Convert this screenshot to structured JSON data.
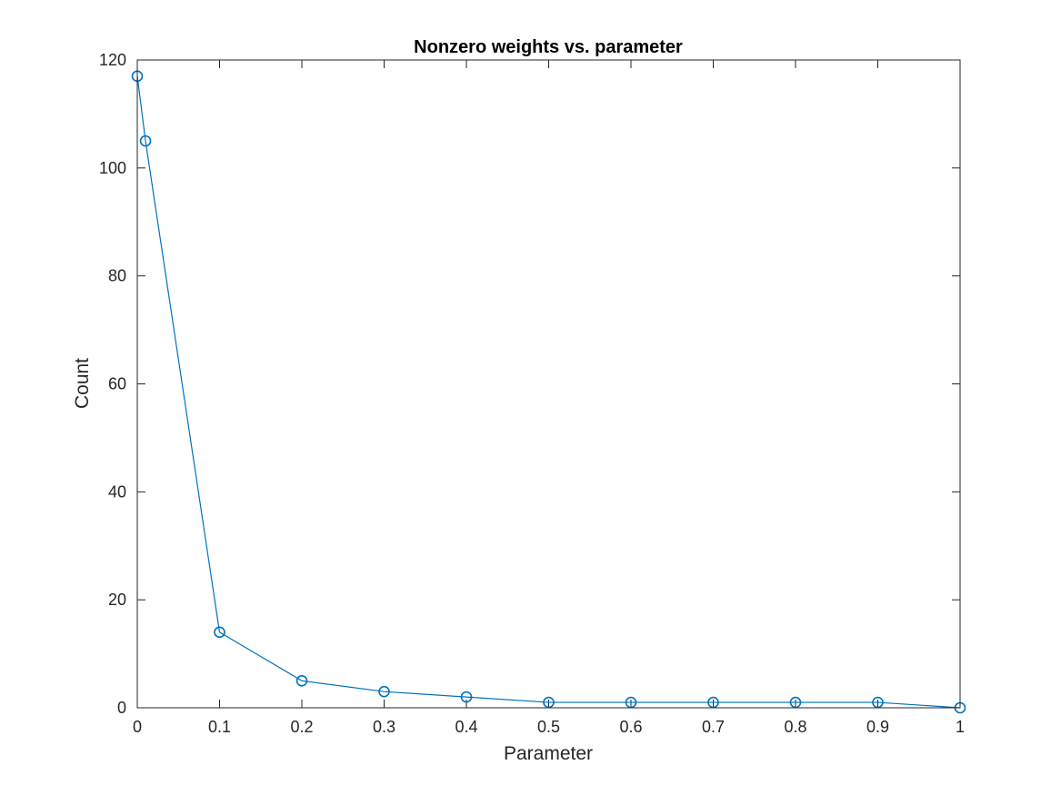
{
  "chart_data": {
    "type": "line",
    "title": "Nonzero weights vs. parameter",
    "xlabel": "Parameter",
    "ylabel": "Count",
    "xlim": [
      0,
      1
    ],
    "ylim": [
      0,
      120
    ],
    "xticks": [
      "0",
      "0.1",
      "0.2",
      "0.3",
      "0.4",
      "0.5",
      "0.6",
      "0.7",
      "0.8",
      "0.9",
      "1"
    ],
    "yticks": [
      "0",
      "20",
      "40",
      "60",
      "80",
      "100",
      "120"
    ],
    "grid": false,
    "marker": "circle",
    "series": [
      {
        "color": "#0072BD",
        "x": [
          0,
          0.01,
          0.1,
          0.2,
          0.3,
          0.4,
          0.5,
          0.6,
          0.7,
          0.8,
          0.9,
          1
        ],
        "y": [
          117,
          105,
          14,
          5,
          3,
          2,
          1,
          1,
          1,
          1,
          1,
          0
        ]
      }
    ]
  }
}
